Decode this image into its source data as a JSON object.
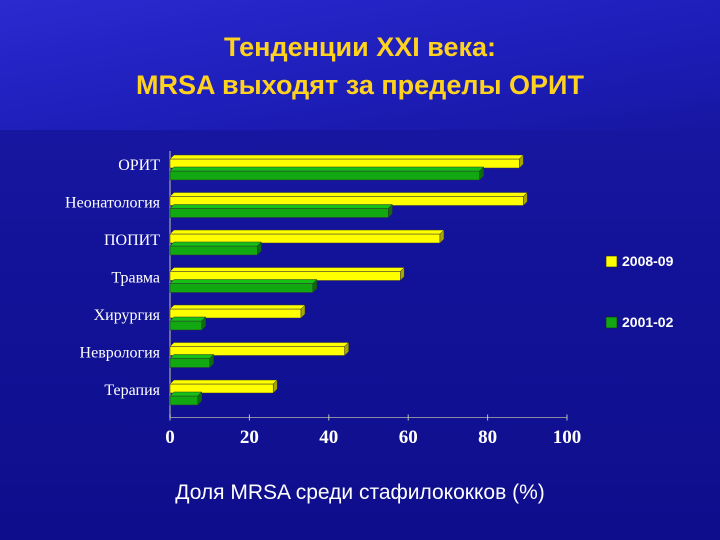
{
  "slide": {
    "title_line1": "Тенденции XXI века:",
    "title_line2": "MRSA выходят за пределы ОРИТ",
    "background": "#13139a",
    "title_color": "#ffd21f"
  },
  "chart_data": {
    "type": "bar",
    "orientation": "horizontal",
    "categories": [
      "ОРИТ",
      "Неонатология",
      "ПОПИТ",
      "Травма",
      "Хирургия",
      "Неврология",
      "Терапия"
    ],
    "series": [
      {
        "name": "2008-09",
        "color": "#ffff00",
        "values": [
          88,
          89,
          68,
          58,
          33,
          44,
          26
        ]
      },
      {
        "name": "2001-02",
        "color": "#11a811",
        "values": [
          78,
          55,
          22,
          36,
          8,
          10,
          7
        ]
      }
    ],
    "xlabel": "Доля MRSA среди стафилококков (%)",
    "xlim": [
      0,
      100
    ],
    "xticks": [
      "0",
      "20",
      "40",
      "60",
      "80",
      "100"
    ],
    "legend_position": "right",
    "grid": false
  }
}
